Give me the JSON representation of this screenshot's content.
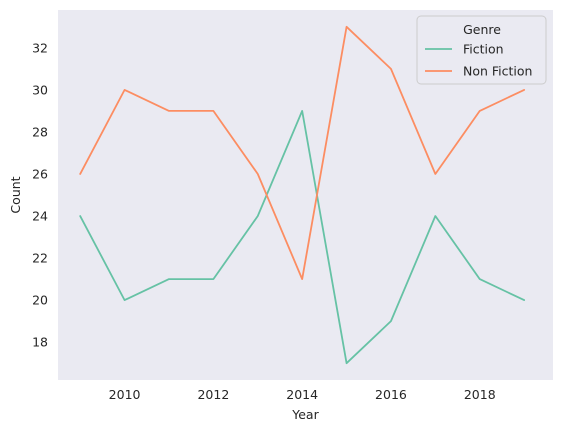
{
  "chart_data": {
    "type": "line",
    "title": "",
    "xlabel": "Year",
    "ylabel": "Count",
    "x": [
      2009,
      2010,
      2011,
      2012,
      2013,
      2014,
      2015,
      2016,
      2017,
      2018,
      2019
    ],
    "xlim": [
      2008.5,
      2019.65
    ],
    "ylim": [
      16.2,
      33.8
    ],
    "xticks": [
      2010,
      2012,
      2014,
      2016,
      2018
    ],
    "yticks": [
      18,
      20,
      22,
      24,
      26,
      28,
      30,
      32
    ],
    "grid": false,
    "background": "#eaeaf2",
    "legend": {
      "title": "Genre",
      "position": "top-right"
    },
    "series": [
      {
        "name": "Fiction",
        "color": "#66c2a5",
        "values": [
          24,
          20,
          21,
          21,
          24,
          29,
          17,
          19,
          24,
          21,
          20
        ]
      },
      {
        "name": "Non Fiction",
        "color": "#fc8d62",
        "values": [
          26,
          30,
          29,
          29,
          26,
          21,
          33,
          31,
          26,
          29,
          30
        ]
      }
    ]
  }
}
